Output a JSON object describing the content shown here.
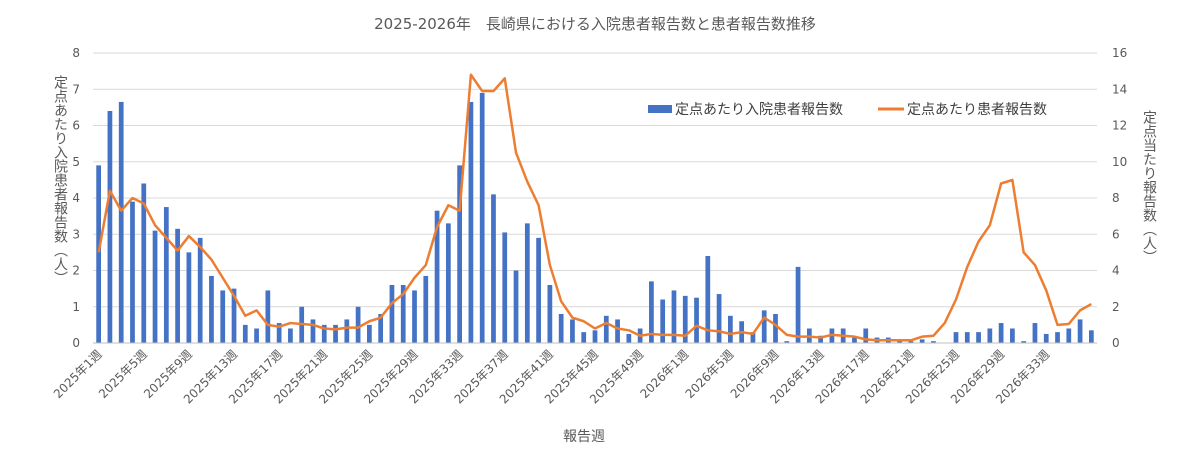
{
  "chart_data": {
    "type": "bar",
    "title": "2025-2026年　長崎県における入院患者報告数と患者報告数推移",
    "xlabel": "報告週",
    "ylabel_left": "定点あたり入院患者報告数（人）",
    "ylabel_right": "定点当たり報告数（人）",
    "ylim_left": [
      0,
      8
    ],
    "ylim_right": [
      0,
      16
    ],
    "yticks_left": [
      "0",
      "1",
      "2",
      "3",
      "4",
      "5",
      "6",
      "7",
      "8"
    ],
    "yticks_right": [
      "0",
      "2",
      "4",
      "6",
      "8",
      "10",
      "12",
      "14",
      "16"
    ],
    "grid": true,
    "legend_position": "top-right",
    "colors": {
      "bar": "#4472c4",
      "line": "#ed7d31"
    },
    "x_tick_labels": [
      "2025年1週",
      "2025年5週",
      "2025年9週",
      "2025年13週",
      "2025年17週",
      "2025年21週",
      "2025年25週",
      "2025年29週",
      "2025年33週",
      "2025年37週",
      "2025年41週",
      "2025年45週",
      "2025年49週",
      "2026年1週",
      "2026年5週",
      "2026年9週",
      "2026年13週",
      "2026年17週",
      "2026年21週",
      "2026年25週",
      "2026年29週",
      "2026年33週"
    ],
    "series": [
      {
        "name": "定点あたり入院患者報告数",
        "type": "bar",
        "axis": "left",
        "values": [
          4.9,
          6.4,
          6.65,
          3.9,
          4.4,
          3.1,
          3.75,
          3.15,
          2.5,
          2.9,
          1.85,
          1.45,
          1.5,
          0.5,
          0.4,
          1.45,
          0.55,
          0.4,
          1.0,
          0.65,
          0.5,
          0.5,
          0.65,
          1.0,
          0.5,
          0.8,
          1.6,
          1.6,
          1.45,
          1.85,
          3.65,
          3.3,
          4.9,
          6.65,
          6.9,
          4.1,
          3.05,
          2.0,
          3.3,
          2.9,
          1.6,
          0.8,
          0.65,
          0.3,
          0.35,
          0.75,
          0.65,
          0.25,
          0.4,
          1.7,
          1.2,
          1.45,
          1.3,
          1.25,
          2.4,
          1.35,
          0.75,
          0.6,
          0.3,
          0.9,
          0.8,
          0.05,
          2.1,
          0.4,
          0.2,
          0.4,
          0.4,
          0.15,
          0.4,
          0.15,
          0.15,
          0.1,
          0.05,
          0.1,
          0.05,
          0.0,
          0.3,
          0.3,
          0.3,
          0.4,
          0.55,
          0.4,
          0.05,
          0.55,
          0.25,
          0.3,
          0.4,
          0.65,
          0.35
        ]
      },
      {
        "name": "定点あたり患者報告数",
        "type": "line",
        "axis": "right",
        "values": [
          5.0,
          8.4,
          7.3,
          8.0,
          7.7,
          6.5,
          5.8,
          5.1,
          5.9,
          5.3,
          4.6,
          3.6,
          2.6,
          1.5,
          1.8,
          1.0,
          0.9,
          1.1,
          1.05,
          1.0,
          0.8,
          0.75,
          0.85,
          0.85,
          1.2,
          1.4,
          2.2,
          2.7,
          3.6,
          4.3,
          6.4,
          7.6,
          7.3,
          14.8,
          13.9,
          13.9,
          14.6,
          10.5,
          8.9,
          7.6,
          4.3,
          2.3,
          1.4,
          1.2,
          0.8,
          1.1,
          0.8,
          0.7,
          0.4,
          0.5,
          0.45,
          0.45,
          0.4,
          0.95,
          0.7,
          0.65,
          0.5,
          0.6,
          0.5,
          1.4,
          1.0,
          0.45,
          0.35,
          0.35,
          0.3,
          0.45,
          0.4,
          0.35,
          0.2,
          0.15,
          0.15,
          0.15,
          0.15,
          0.35,
          0.4,
          1.1,
          2.4,
          4.2,
          5.6,
          6.5,
          8.8,
          9.0,
          5.0,
          4.3,
          2.9,
          1.0,
          1.05,
          1.8,
          2.15
        ]
      }
    ]
  }
}
